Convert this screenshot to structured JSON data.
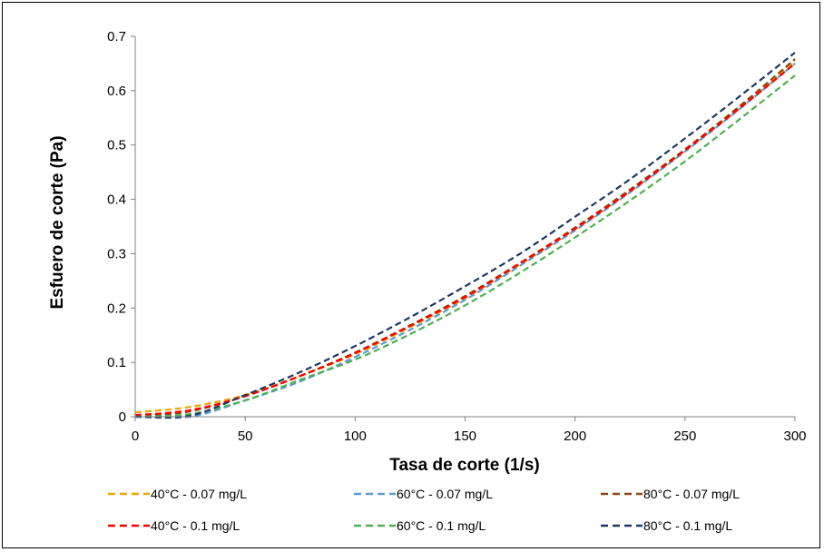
{
  "chart_data": {
    "type": "line",
    "xlabel": "Tasa de corte (1/s)",
    "ylabel": "Esfuero de corte (Pa)",
    "xlim": [
      0,
      300
    ],
    "ylim": [
      0,
      0.7
    ],
    "x_ticks": [
      "0",
      "50",
      "100",
      "150",
      "200",
      "250",
      "300"
    ],
    "y_ticks": [
      "0",
      "0.1",
      "0.2",
      "0.3",
      "0.4",
      "0.5",
      "0.6",
      "0.7"
    ],
    "grid": false,
    "legend_position": "bottom",
    "line_style": "dashed",
    "series": [
      {
        "name": "40°C - 0.07 mg/L",
        "color": "#E8A800",
        "x": [
          0,
          25,
          50,
          75,
          100,
          125,
          150,
          175,
          200,
          225,
          250,
          275,
          300
        ],
        "y": [
          0.008,
          0.018,
          0.04,
          0.075,
          0.115,
          0.165,
          0.218,
          0.28,
          0.345,
          0.415,
          0.49,
          0.57,
          0.655
        ]
      },
      {
        "name": "60°C - 0.07 mg/L",
        "color": "#5B9BD5",
        "x": [
          0,
          25,
          50,
          75,
          100,
          125,
          150,
          175,
          200,
          225,
          250,
          275,
          300
        ],
        "y": [
          0.0,
          0.0,
          0.03,
          0.065,
          0.11,
          0.16,
          0.215,
          0.278,
          0.343,
          0.413,
          0.488,
          0.567,
          0.65
        ]
      },
      {
        "name": "80°C - 0.07 mg/L",
        "color": "#8B4513",
        "x": [
          0,
          25,
          50,
          75,
          100,
          125,
          150,
          175,
          200,
          225,
          250,
          275,
          300
        ],
        "y": [
          0.0,
          0.01,
          0.038,
          0.075,
          0.118,
          0.168,
          0.222,
          0.283,
          0.348,
          0.418,
          0.492,
          0.572,
          0.658
        ]
      },
      {
        "name": "40°C - 0.1 mg/L",
        "color": "#FF0000",
        "x": [
          0,
          25,
          50,
          75,
          100,
          125,
          150,
          175,
          200,
          225,
          250,
          275,
          300
        ],
        "y": [
          0.003,
          0.012,
          0.038,
          0.075,
          0.117,
          0.167,
          0.22,
          0.282,
          0.346,
          0.415,
          0.49,
          0.568,
          0.65
        ]
      },
      {
        "name": "60°C - 0.1 mg/L",
        "color": "#4CAF50",
        "x": [
          0,
          25,
          50,
          75,
          100,
          125,
          150,
          175,
          200,
          225,
          250,
          275,
          300
        ],
        "y": [
          0.0,
          0.005,
          0.03,
          0.068,
          0.105,
          0.152,
          0.205,
          0.265,
          0.33,
          0.398,
          0.47,
          0.548,
          0.628
        ]
      },
      {
        "name": "80°C - 0.1 mg/L",
        "color": "#1F3864",
        "x": [
          0,
          25,
          50,
          75,
          100,
          125,
          150,
          175,
          200,
          225,
          250,
          275,
          300
        ],
        "y": [
          0.0,
          0.002,
          0.04,
          0.082,
          0.13,
          0.183,
          0.24,
          0.3,
          0.368,
          0.437,
          0.512,
          0.59,
          0.67
        ]
      }
    ]
  }
}
